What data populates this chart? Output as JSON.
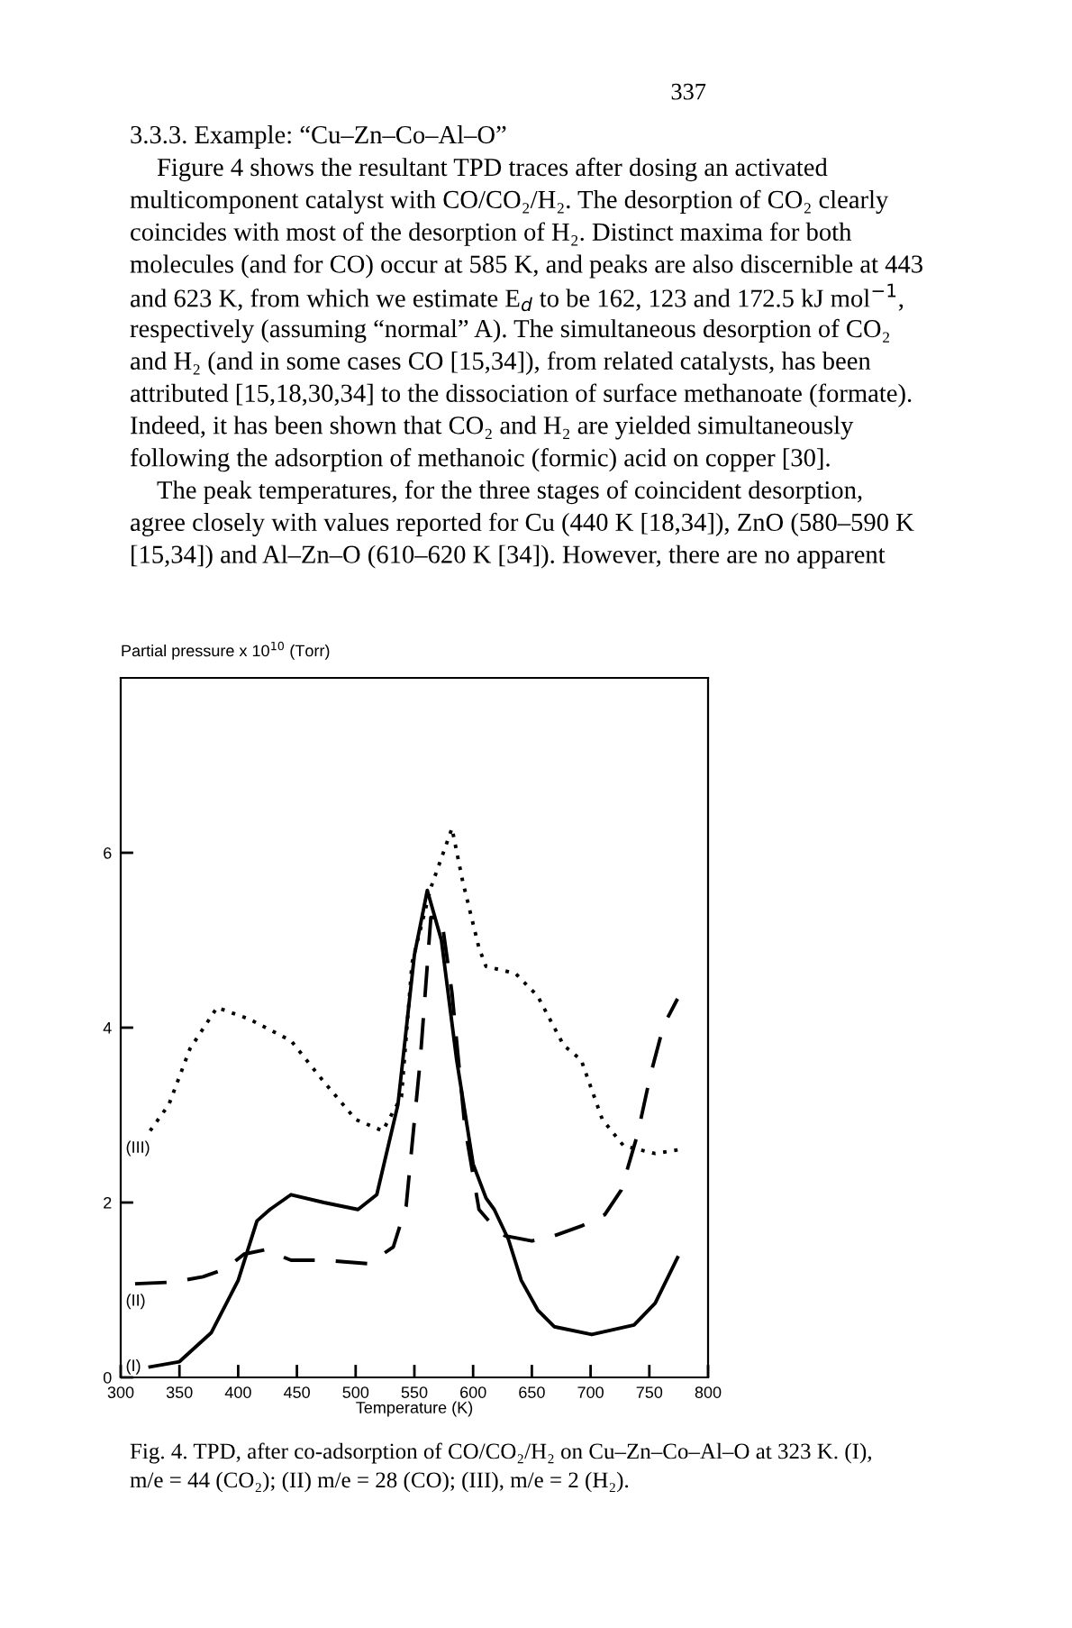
{
  "chart_data": {
    "type": "line",
    "xlabel": "Temperature (K)",
    "ylabel": "Partial pressure x 10$^{10}$ (Torr)",
    "xlim": [
      300,
      800
    ],
    "xticks": [
      300,
      350,
      400,
      450,
      500,
      550,
      600,
      650,
      700,
      750,
      800
    ],
    "ylim": [
      0,
      8
    ],
    "yticks": [
      0,
      2,
      4,
      6
    ],
    "grid": false,
    "legend": false,
    "marker": "none",
    "series": [
      {
        "name": "(I)",
        "color": "#000000",
        "line_style": "solid",
        "x": [
          325,
          350,
          377,
          400,
          416,
          427,
          445,
          473,
          502,
          518,
          536,
          550,
          561,
          573,
          586,
          600,
          611,
          618,
          630,
          641,
          655,
          669,
          701,
          737,
          755,
          774
        ],
        "values": [
          0.12,
          0.18,
          0.51,
          1.11,
          1.79,
          1.92,
          2.09,
          2.0,
          1.92,
          2.09,
          3.12,
          4.83,
          5.57,
          5.0,
          3.63,
          2.44,
          2.05,
          1.92,
          1.58,
          1.11,
          0.77,
          0.58,
          0.49,
          0.6,
          0.85,
          1.37
        ]
      },
      {
        "name": "(II)",
        "color": "#000000",
        "line_style": "dashed",
        "x": [
          311,
          345,
          370,
          389,
          405,
          423,
          445,
          473,
          511,
          532,
          543,
          555,
          564,
          573,
          582,
          593,
          605,
          616,
          627,
          650,
          669,
          692,
          712,
          726,
          740,
          751,
          762,
          774
        ],
        "values": [
          1.07,
          1.09,
          1.15,
          1.24,
          1.41,
          1.46,
          1.34,
          1.34,
          1.3,
          1.49,
          1.96,
          3.63,
          5.26,
          5.26,
          4.4,
          2.86,
          1.92,
          1.75,
          1.62,
          1.56,
          1.62,
          1.73,
          1.86,
          2.14,
          2.78,
          3.46,
          4.02,
          4.33
        ]
      },
      {
        "name": "(III)",
        "color": "#000000",
        "line_style": "dotted",
        "x": [
          325,
          341,
          359,
          382,
          409,
          445,
          473,
          500,
          523,
          539,
          548,
          564,
          582,
          591,
          605,
          611,
          636,
          655,
          677,
          692,
          710,
          728,
          755,
          778
        ],
        "values": [
          2.82,
          3.12,
          3.76,
          4.23,
          4.1,
          3.85,
          3.38,
          2.95,
          2.82,
          3.21,
          4.74,
          5.6,
          6.28,
          5.68,
          4.91,
          4.7,
          4.62,
          4.36,
          3.8,
          3.63,
          2.95,
          2.65,
          2.56,
          2.61
        ]
      }
    ],
    "annotations": [
      "337",
      "3.3.3. Example: “Cu–Zn–Co–Al–O”",
      "Figure 4 shows the resultant TPD traces after dosing an activated",
      "multicomponent catalyst with CO/CO₂/H₂. The desorption of CO₂ clearly",
      "coincides with most of the desorption of H₂. Distinct maxima for both",
      "molecules (and for CO) occur at 585 K, and peaks are also discernible at 443",
      "and 623 K, from which we estimate E$_{d}$ to be 162, 123 and 172.5 kJ mol$^{−1}$,",
      "respectively (assuming “normal” A). The simultaneous desorption of CO₂",
      "and H₂ (and in some cases CO [15,34]), from related catalysts, has been",
      "attributed [15,18,30,34] to the dissociation of surface methanoate (formate).",
      "Indeed, it has been shown that CO₂ and H₂ are yielded simultaneously",
      "following the adsorption of methanoic (formic) acid on copper [30].",
      "The peak temperatures, for the three stages of coincident desorption,",
      "agree closely with values reported for Cu (440 K [18,34]), ZnO (580–590 K",
      "[15,34]) and Al–Zn–O (610–620 K [34]). However, there are no apparent",
      "Fig. 4. TPD, after co-adsorption of CO/CO₂/H₂ on Cu–Zn–Co–Al–O at 323 K. (I),",
      "m/e = 44 (CO₂); (II) m/e = 28 (CO); (III), m/e = 2 (H₂)."
    ]
  }
}
